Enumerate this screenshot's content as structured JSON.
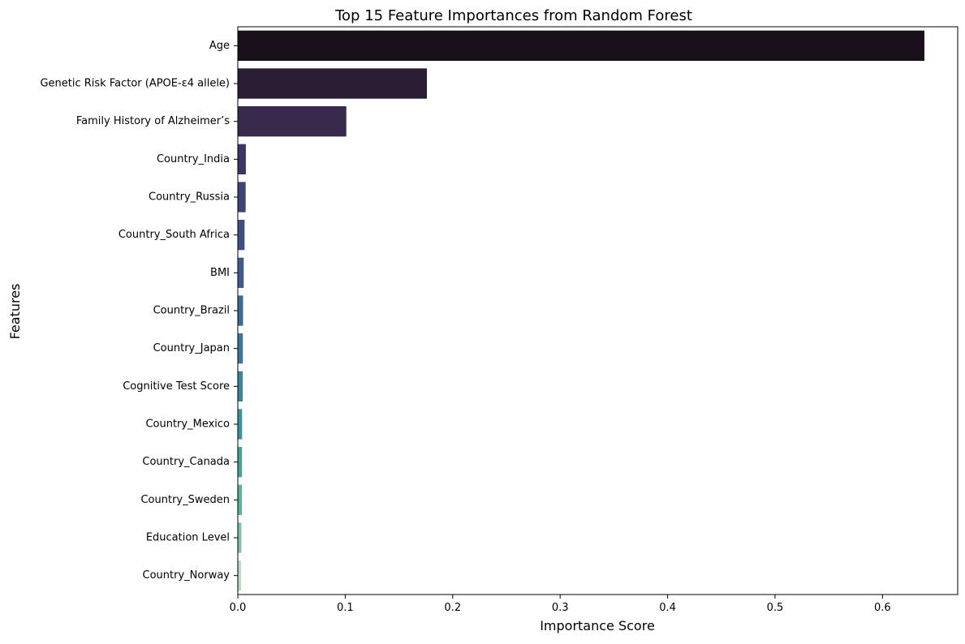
{
  "chart_data": {
    "type": "bar",
    "orientation": "horizontal",
    "title": "Top 15 Feature Importances from Random Forest",
    "xlabel": "Importance Score",
    "ylabel": "Features",
    "xlim": [
      0,
      0.67
    ],
    "xticks": [
      0,
      0.1,
      0.2,
      0.3,
      0.4,
      0.5,
      0.6
    ],
    "xtick_labels": [
      "0.0",
      "0.1",
      "0.2",
      "0.3",
      "0.4",
      "0.5",
      "0.6"
    ],
    "grid": false,
    "legend": "none",
    "palette": "mako",
    "categories": [
      "Age",
      "Genetic Risk Factor (APOE-ε4 allele)",
      "Family History of Alzheimer’s",
      "Country_India",
      "Country_Russia",
      "Country_South Africa",
      "BMI",
      "Country_Brazil",
      "Country_Japan",
      "Cognitive Test Score",
      "Country_Mexico",
      "Country_Canada",
      "Country_Sweden",
      "Education Level",
      "Country_Norway"
    ],
    "values": [
      0.639,
      0.176,
      0.101,
      0.0075,
      0.0073,
      0.0063,
      0.0055,
      0.0049,
      0.0047,
      0.0046,
      0.004,
      0.0039,
      0.0038,
      0.0033,
      0.003
    ],
    "colors": [
      "#1a101c",
      "#2b1d33",
      "#372a4d",
      "#3b3663",
      "#404372",
      "#414f80",
      "#3e5c8c",
      "#3c6a91",
      "#3b7795",
      "#3a8698",
      "#3b9499",
      "#45a39a",
      "#5ab39d",
      "#7dc2a6",
      "#b6dcc0"
    ]
  }
}
